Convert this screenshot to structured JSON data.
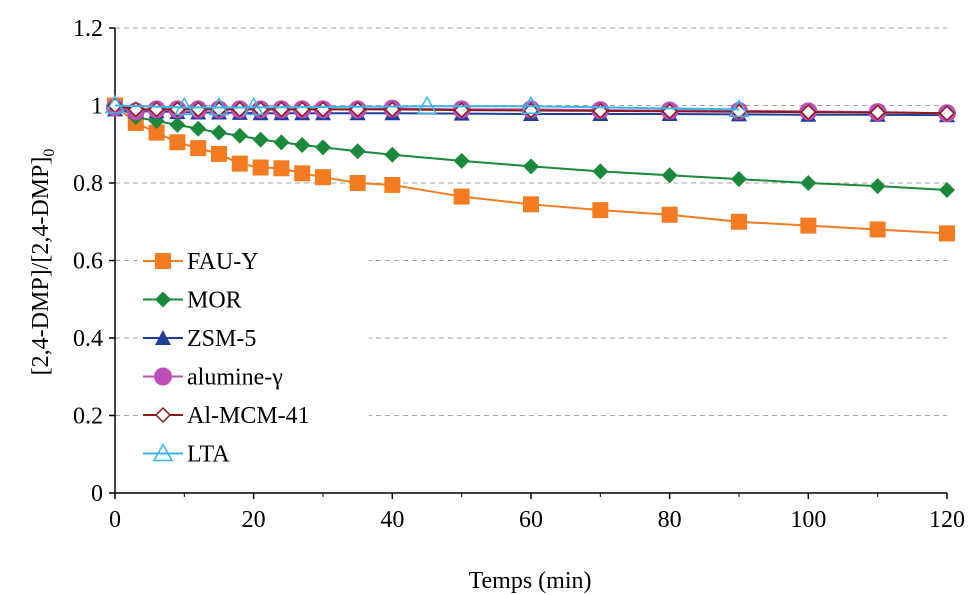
{
  "chart_data": {
    "type": "line",
    "title": "",
    "xlabel": "Temps (min)",
    "ylabel_main": "[2,4-DMP]/[2,4-DMP]",
    "ylabel_sub": "0",
    "xlim": [
      0,
      120
    ],
    "ylim": [
      0,
      1.2
    ],
    "xticks": [
      0,
      20,
      40,
      60,
      80,
      100,
      120
    ],
    "yticks": [
      0,
      0.2,
      0.4,
      0.6,
      0.8,
      1,
      1.2
    ],
    "xtick_labels": [
      "0",
      "20",
      "40",
      "60",
      "80",
      "100",
      "120"
    ],
    "ytick_labels": [
      "0",
      "0.2",
      "0.4",
      "0.6",
      "0.8",
      "1",
      "1.2"
    ],
    "grid": "horizontal-dashed",
    "legend_position": "left",
    "series": [
      {
        "name": "FAU-Y",
        "color": "#F47B20",
        "marker": "square",
        "x": [
          0,
          3,
          6,
          9,
          12,
          15,
          18,
          21,
          24,
          27,
          30,
          35,
          40,
          50,
          60,
          70,
          80,
          90,
          100,
          110,
          120
        ],
        "y": [
          1.0,
          0.955,
          0.93,
          0.905,
          0.89,
          0.875,
          0.85,
          0.84,
          0.838,
          0.825,
          0.815,
          0.8,
          0.795,
          0.765,
          0.745,
          0.73,
          0.718,
          0.7,
          0.69,
          0.68,
          0.67
        ]
      },
      {
        "name": "MOR",
        "color": "#1A8A3A",
        "marker": "diamond",
        "x": [
          0,
          3,
          6,
          9,
          12,
          15,
          18,
          21,
          24,
          27,
          30,
          35,
          40,
          50,
          60,
          70,
          80,
          90,
          100,
          110,
          120
        ],
        "y": [
          1.0,
          0.97,
          0.96,
          0.95,
          0.94,
          0.93,
          0.922,
          0.912,
          0.905,
          0.898,
          0.892,
          0.882,
          0.873,
          0.857,
          0.843,
          0.83,
          0.82,
          0.81,
          0.8,
          0.792,
          0.782
        ]
      },
      {
        "name": "ZSM-5",
        "color": "#1F3F99",
        "marker": "triangle",
        "x": [
          0,
          3,
          6,
          9,
          12,
          15,
          18,
          21,
          24,
          27,
          30,
          35,
          40,
          50,
          60,
          70,
          80,
          90,
          100,
          110,
          120
        ],
        "y": [
          0.99,
          0.985,
          0.985,
          0.983,
          0.982,
          0.982,
          0.981,
          0.98,
          0.98,
          0.98,
          0.98,
          0.98,
          0.98,
          0.979,
          0.978,
          0.978,
          0.978,
          0.977,
          0.976,
          0.976,
          0.975
        ]
      },
      {
        "name": "alumine-γ",
        "color": "#BE4FB8",
        "marker": "circle",
        "x": [
          0,
          3,
          6,
          9,
          12,
          15,
          18,
          21,
          24,
          27,
          30,
          35,
          40,
          50,
          60,
          70,
          80,
          90,
          100,
          110,
          120
        ],
        "y": [
          0.995,
          0.985,
          0.99,
          0.99,
          0.99,
          0.99,
          0.99,
          0.99,
          0.99,
          0.99,
          0.99,
          0.99,
          0.992,
          0.99,
          0.99,
          0.988,
          0.987,
          0.986,
          0.985,
          0.983,
          0.98
        ]
      },
      {
        "name": "Al-MCM-41",
        "color": "#8B1A1A",
        "marker": "diamond-open",
        "x": [
          0,
          3,
          6,
          9,
          12,
          15,
          18,
          21,
          24,
          27,
          30,
          35,
          40,
          50,
          60,
          70,
          80,
          90,
          100,
          110,
          120
        ],
        "y": [
          1.0,
          0.99,
          0.99,
          0.99,
          0.99,
          0.99,
          0.99,
          0.99,
          0.99,
          0.99,
          0.99,
          0.99,
          0.99,
          0.988,
          0.987,
          0.986,
          0.985,
          0.984,
          0.983,
          0.982,
          0.98
        ]
      },
      {
        "name": "LTA",
        "color": "#38B6E8",
        "marker": "triangle-open",
        "x": [
          0,
          10,
          15,
          20,
          45,
          60,
          90
        ],
        "y": [
          1.0,
          0.995,
          0.995,
          0.995,
          0.998,
          0.998,
          0.99
        ]
      }
    ]
  }
}
